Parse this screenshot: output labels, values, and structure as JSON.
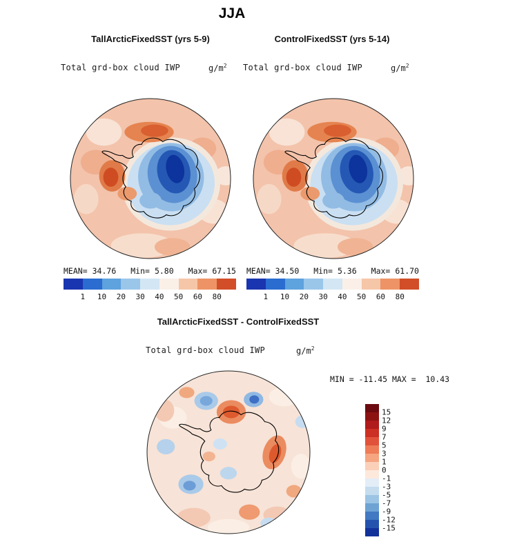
{
  "page_title": "JJA",
  "panels": {
    "left": {
      "title": "TallArcticFixedSST (yrs 5-9)",
      "field": "Total grd-box cloud IWP",
      "units_base": "g/m",
      "units_exp": "2",
      "mean_label": "MEAN=",
      "mean": "34.76",
      "min_label": "Min=",
      "min": "5.80",
      "max_label": "Max=",
      "max": "67.15"
    },
    "right": {
      "title": "ControlFixedSST (yrs 5-14)",
      "field": "Total grd-box cloud IWP",
      "units_base": "g/m",
      "units_exp": "2",
      "mean_label": "MEAN=",
      "mean": "34.50",
      "min_label": "Min=",
      "min": "5.36",
      "max_label": "Max=",
      "max": "61.70"
    },
    "diff": {
      "title": "TallArcticFixedSST - ControlFixedSST",
      "field": "Total grd-box cloud IWP",
      "units_base": "g/m",
      "units_exp": "2",
      "minmax": "MIN = -11.45 MAX =  10.43"
    }
  },
  "colorbar_top": {
    "colors": [
      "#1a35b0",
      "#2a6cd0",
      "#5ea2de",
      "#9ac6ea",
      "#d3e6f4",
      "#faf0e8",
      "#f6c6a8",
      "#ee9366",
      "#d14e28"
    ],
    "ticks": [
      "1",
      "10",
      "20",
      "30",
      "40",
      "50",
      "60",
      "80"
    ]
  },
  "colorbar_diff": {
    "colors": [
      "#6b0a10",
      "#8c1212",
      "#b01b1b",
      "#cc2f23",
      "#e1523a",
      "#ee7c57",
      "#f5a580",
      "#fbd0b8",
      "#fde9dc",
      "#e3edf7",
      "#c4dcee",
      "#9cc4e4",
      "#6ea3d4",
      "#4179c2",
      "#2453ae",
      "#12329a"
    ],
    "ticks": [
      "15",
      "12",
      "9",
      "7",
      "5",
      "3",
      "1",
      "0",
      "-1",
      "-3",
      "-5",
      "-7",
      "-9",
      "-12",
      "-15"
    ]
  },
  "chart_data": [
    {
      "type": "heatmap",
      "title": "TallArcticFixedSST (yrs 5-9)",
      "season": "JJA",
      "variable": "Total grd-box cloud IWP",
      "units": "g/m^2",
      "stats": {
        "mean": 34.76,
        "min": 5.8,
        "max": 67.15
      },
      "contour_levels": [
        1,
        10,
        20,
        30,
        40,
        50,
        60,
        80
      ],
      "palette": "blue-white-red",
      "legend_position": "bottom"
    },
    {
      "type": "heatmap",
      "title": "ControlFixedSST (yrs 5-14)",
      "season": "JJA",
      "variable": "Total grd-box cloud IWP",
      "units": "g/m^2",
      "stats": {
        "mean": 34.5,
        "min": 5.36,
        "max": 61.7
      },
      "contour_levels": [
        1,
        10,
        20,
        30,
        40,
        50,
        60,
        80
      ],
      "palette": "blue-white-red",
      "legend_position": "bottom"
    },
    {
      "type": "heatmap",
      "title": "TallArcticFixedSST - ControlFixedSST",
      "season": "JJA",
      "variable": "Total grd-box cloud IWP",
      "units": "g/m^2",
      "stats": {
        "min": -11.45,
        "max": 10.43
      },
      "contour_levels": [
        15,
        12,
        9,
        7,
        5,
        3,
        1,
        0,
        -1,
        -3,
        -5,
        -7,
        -9,
        -12,
        -15
      ],
      "palette": "red-white-blue (top to bottom)",
      "legend_position": "right"
    }
  ]
}
